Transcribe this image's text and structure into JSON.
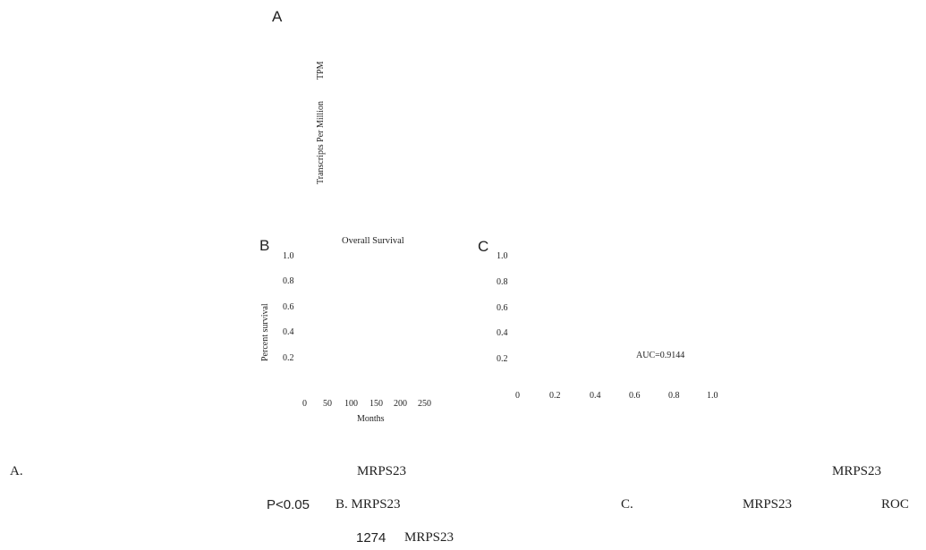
{
  "panel_a": {
    "letter": "A",
    "ylabel_main": "Transcripts Per Million",
    "ylabel_abbr": "TPM"
  },
  "panel_b": {
    "letter": "B",
    "title": "Overall Survival",
    "ylabel": "Percent survival",
    "xlabel": "Months",
    "y_ticks": [
      "1.0",
      "0.8",
      "0.6",
      "0.4",
      "0.2"
    ],
    "x_ticks": [
      "0",
      "50",
      "100",
      "150",
      "200",
      "250"
    ]
  },
  "panel_c": {
    "letter": "C",
    "annotation": "AUC=0.9144",
    "y_ticks": [
      "1.0",
      "0.8",
      "0.6",
      "0.4",
      "0.2"
    ],
    "x_ticks": [
      "0",
      "0.2",
      "0.4",
      "0.6",
      "0.8",
      "1.0"
    ]
  },
  "caption": {
    "line1_a": "A.",
    "line1_gene1": "MRPS23",
    "line1_gene2": "MRPS23",
    "line2_p": "P<0.05",
    "line2_b": "B. MRPS23",
    "line2_c": "C.",
    "line2_gene": "MRPS23",
    "line2_roc": "ROC",
    "line3_num": "1274",
    "line3_gene": "MRPS23"
  },
  "chart_data": [
    {
      "type": "other",
      "panel": "A",
      "ylabel": "Transcripts Per Million TPM"
    },
    {
      "type": "line",
      "panel": "B",
      "title": "Overall Survival",
      "xlabel": "Months",
      "ylabel": "Percent survival",
      "x_ticks": [
        0,
        50,
        100,
        150,
        200,
        250
      ],
      "y_ticks": [
        0.2,
        0.4,
        0.6,
        0.8,
        1.0
      ]
    },
    {
      "type": "line",
      "panel": "C",
      "annotation": "AUC=0.9144",
      "x_ticks": [
        0,
        0.2,
        0.4,
        0.6,
        0.8,
        1.0
      ],
      "y_ticks": [
        0.2,
        0.4,
        0.6,
        0.8,
        1.0
      ]
    }
  ]
}
